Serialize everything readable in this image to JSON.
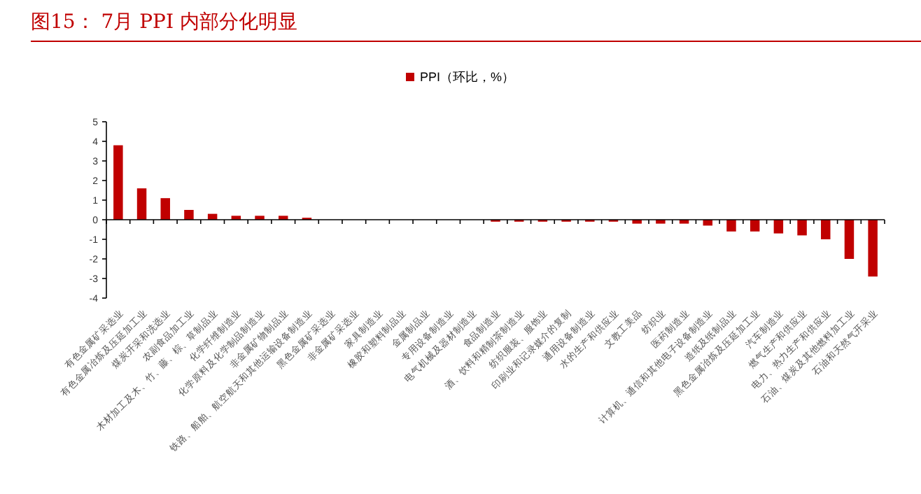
{
  "chart_data": {
    "type": "bar",
    "title": "图15：  7月 PPI 内部分化明显",
    "categories": [
      "有色金属矿采选业",
      "有色金属冶炼及压延加工业",
      "煤炭开采和洗选业",
      "农副食品加工业",
      "木材加工及木、竹、藤、棕、草制品业",
      "化学纤维制造业",
      "化学原料及化学制品制造业",
      "非金属矿物制品业",
      "铁路、船舶、航空航天和其他运输设备制造业",
      "黑色金属矿采选业",
      "非金属矿采选业",
      "家具制造业",
      "橡胶和塑料制品业",
      "金属制品业",
      "专用设备制造业",
      "电气机械及器材制造业",
      "食品制造业",
      "酒、饮料和精制茶制造业",
      "纺织服装、服饰业",
      "印刷业和记录媒介的复制",
      "通用设备制造业",
      "水的生产和供应业",
      "文教工美品",
      "纺织业",
      "医药制造业",
      "计算机、通信和其他电子设备制造业",
      "造纸及纸制品业",
      "黑色金属冶炼及压延加工业",
      "汽车制造业",
      "燃气生产和供应业",
      "电力、热力生产和供应业",
      "石油、煤炭及其他燃料加工业",
      "石油和天然气开采业"
    ],
    "series": [
      {
        "name": "PPI（环比，%）",
        "color": "#c00000",
        "values": [
          3.8,
          1.6,
          1.1,
          0.5,
          0.3,
          0.2,
          0.2,
          0.2,
          0.1,
          0,
          0,
          0,
          0,
          0,
          0,
          0,
          -0.1,
          -0.1,
          -0.1,
          -0.1,
          -0.1,
          -0.1,
          -0.2,
          -0.2,
          -0.2,
          -0.3,
          -0.6,
          -0.6,
          -0.7,
          -0.8,
          -1.0,
          -2.0,
          -2.9
        ]
      }
    ],
    "ylim": [
      -4,
      5
    ],
    "yticks": [
      -4,
      -3,
      -2,
      -1,
      0,
      1,
      2,
      3,
      4,
      5
    ],
    "legend": "top"
  }
}
